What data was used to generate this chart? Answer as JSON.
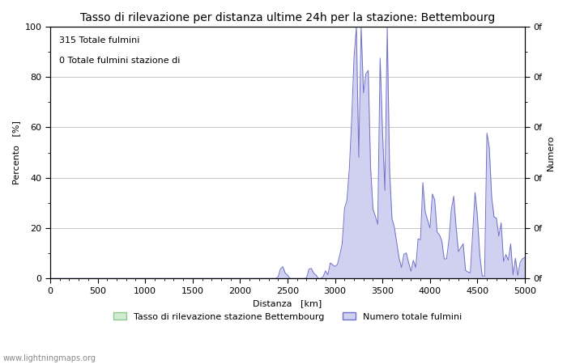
{
  "title": "Tasso di rilevazione per distanza ultime 24h per la stazione: Bettembourg",
  "xlabel": "Distanza   [km]",
  "ylabel_left": "Percento   [%]",
  "ylabel_right": "Numero",
  "annotation_line1": "315 Totale fulmini",
  "annotation_line2": "0 Totale fulmini stazione di",
  "legend_label1": "Tasso di rilevazione stazione Bettembourg",
  "legend_label2": "Numero totale fulmini",
  "watermark": "www.lightningmaps.org",
  "xlim": [
    0,
    5000
  ],
  "ylim": [
    0,
    100
  ],
  "xticks": [
    0,
    500,
    1000,
    1500,
    2000,
    2500,
    3000,
    3500,
    4000,
    4500,
    5000
  ],
  "yticks_left": [
    0,
    20,
    40,
    60,
    80,
    100
  ],
  "right_ytick_label": "0f",
  "fill_color_green": "#d0ecd0",
  "fill_color_blue": "#d0d0f0",
  "line_color_blue": "#7070c8",
  "line_color_green": "#90c890",
  "grid_color": "#bbbbbb",
  "bg_color": "#ffffff",
  "title_fontsize": 10,
  "label_fontsize": 8,
  "tick_fontsize": 8,
  "minor_tick_color": "#555555"
}
